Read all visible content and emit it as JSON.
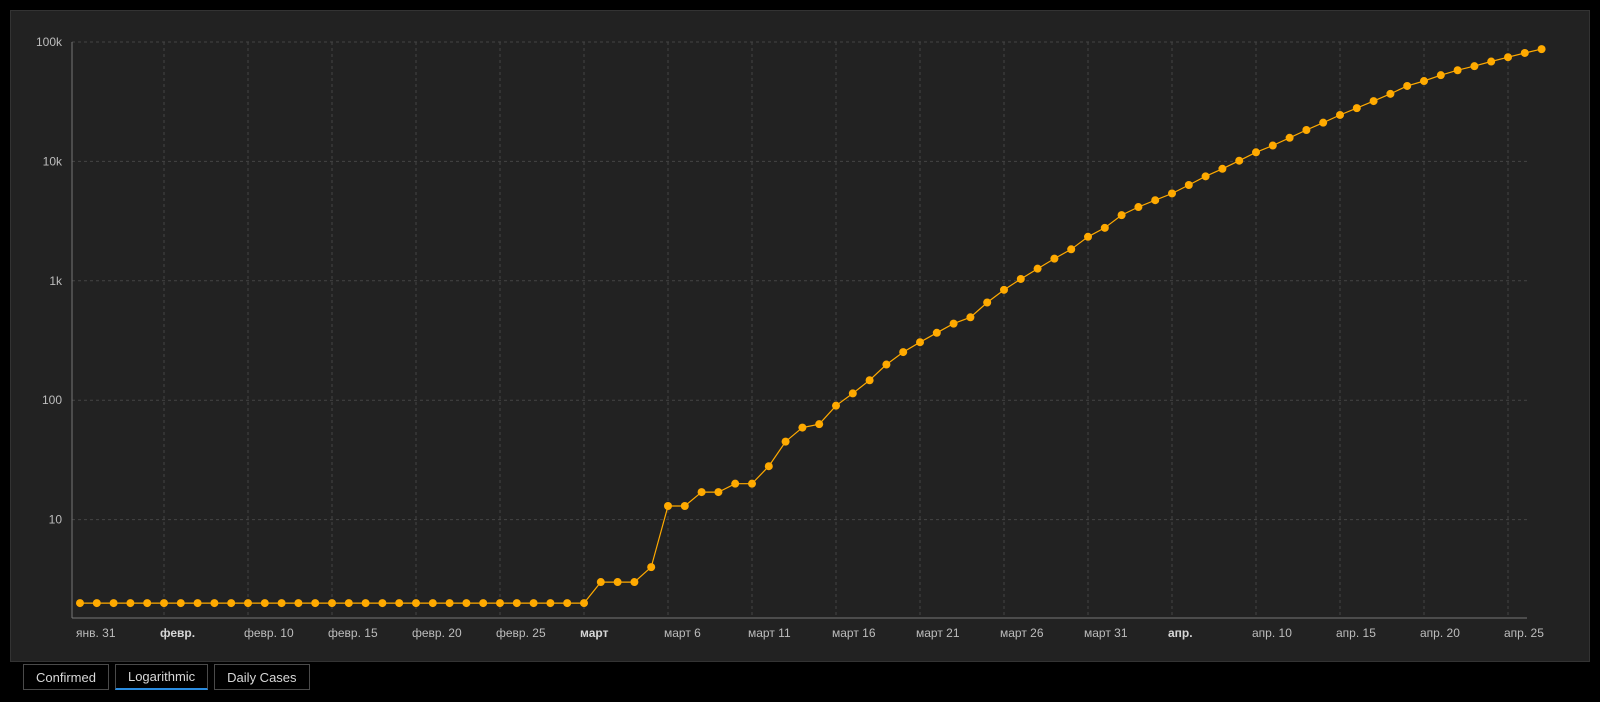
{
  "colors": {
    "series": "#ffaa00",
    "grid": "#444444",
    "axis": "#777777",
    "active_tab_accent": "#2a8ce0"
  },
  "tabs": [
    {
      "label": "Confirmed",
      "active": false
    },
    {
      "label": "Logarithmic",
      "active": true
    },
    {
      "label": "Daily Cases",
      "active": false
    }
  ],
  "chart_data": {
    "type": "line",
    "yscale": "log",
    "ylim": [
      1.5,
      100000
    ],
    "grid": true,
    "y_ticks": [
      {
        "value": 10,
        "label": "10"
      },
      {
        "value": 100,
        "label": "100"
      },
      {
        "value": 1000,
        "label": "1k"
      },
      {
        "value": 10000,
        "label": "10k"
      },
      {
        "value": 100000,
        "label": "100k"
      }
    ],
    "x_start": "2020-01-31",
    "x_ticks": [
      {
        "day": 0,
        "label": "янв. 31",
        "bold": false
      },
      {
        "day": 5,
        "label": "февр.",
        "bold": true
      },
      {
        "day": 10,
        "label": "февр. 10",
        "bold": false
      },
      {
        "day": 15,
        "label": "февр. 15",
        "bold": false
      },
      {
        "day": 20,
        "label": "февр. 20",
        "bold": false
      },
      {
        "day": 25,
        "label": "февр. 25",
        "bold": false
      },
      {
        "day": 30,
        "label": "март",
        "bold": true
      },
      {
        "day": 35,
        "label": "март 6",
        "bold": false
      },
      {
        "day": 40,
        "label": "март 11",
        "bold": false
      },
      {
        "day": 45,
        "label": "март 16",
        "bold": false
      },
      {
        "day": 50,
        "label": "март 21",
        "bold": false
      },
      {
        "day": 55,
        "label": "март 26",
        "bold": false
      },
      {
        "day": 60,
        "label": "март 31",
        "bold": false
      },
      {
        "day": 65,
        "label": "апр.",
        "bold": true
      },
      {
        "day": 70,
        "label": "апр. 10",
        "bold": false
      },
      {
        "day": 75,
        "label": "апр. 15",
        "bold": false
      },
      {
        "day": 80,
        "label": "апр. 20",
        "bold": false
      },
      {
        "day": 85,
        "label": "апр. 25",
        "bold": false
      }
    ],
    "series": [
      {
        "values": [
          2,
          2,
          2,
          2,
          2,
          2,
          2,
          2,
          2,
          2,
          2,
          2,
          2,
          2,
          2,
          2,
          2,
          2,
          2,
          2,
          2,
          2,
          2,
          2,
          2,
          2,
          2,
          2,
          2,
          2,
          2,
          3,
          3,
          3,
          4,
          13,
          13,
          17,
          17,
          20,
          20,
          28,
          45,
          59,
          63,
          90,
          114,
          147,
          199,
          253,
          306,
          367,
          438,
          495,
          658,
          840,
          1036,
          1264,
          1534,
          1836,
          2337,
          2777,
          3548,
          4149,
          4731,
          5389,
          6343,
          7497,
          8672,
          10131,
          11917,
          13584,
          15770,
          18328,
          21102,
          24490,
          27938,
          32008,
          36793,
          42853,
          47121,
          52763,
          57999,
          62773,
          68622,
          74588,
          80949,
          87147
        ]
      }
    ]
  }
}
